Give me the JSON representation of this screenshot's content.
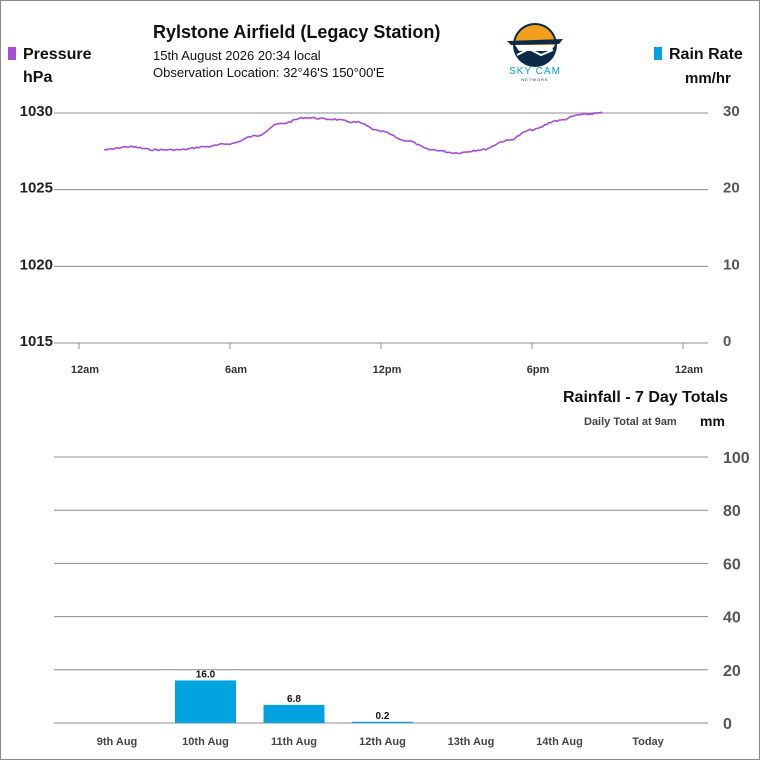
{
  "header": {
    "title": "Rylstone Airfield (Legacy Station)",
    "datetime": "15th August 2026  20:34 local",
    "location": "Observation Location: 32°46'S 150°00'E"
  },
  "logo": {
    "name": "sky-cam-logo",
    "text": "SKY CAM",
    "subtext": "NETWORK"
  },
  "colors": {
    "pressure": "#a64dd8",
    "rain": "#00a2e0",
    "grid": "#8c8c8c"
  },
  "pressure_panel": {
    "left_title": "Pressure",
    "left_unit": "hPa",
    "right_title": "Rain Rate",
    "right_unit": "mm/hr"
  },
  "rain_panel": {
    "title": "Rainfall - 7 Day Totals",
    "subtitle": "Daily Total at 9am",
    "unit": "mm"
  },
  "chart_data": [
    {
      "type": "line",
      "series": [
        {
          "name": "Pressure",
          "x_hours": [
            1.0,
            2.0,
            3.0,
            4.0,
            5.0,
            6.0,
            7.0,
            8.0,
            9.0,
            10.0,
            11.0,
            12.0,
            13.0,
            14.0,
            15.0,
            16.0,
            17.0,
            18.0,
            19.0,
            20.0,
            20.8
          ],
          "values": [
            1027.6,
            1027.8,
            1027.6,
            1027.6,
            1027.8,
            1028.0,
            1028.5,
            1029.3,
            1029.7,
            1029.6,
            1029.4,
            1028.8,
            1028.2,
            1027.6,
            1027.4,
            1027.6,
            1028.2,
            1028.9,
            1029.5,
            1029.9,
            1030.0
          ]
        }
      ],
      "ylim_left": [
        1015,
        1030
      ],
      "yticks_left": [
        "1030",
        "1025",
        "1020",
        "1015"
      ],
      "ylim_right": [
        0,
        30
      ],
      "yticks_right": [
        "30",
        "20",
        "10",
        "0"
      ],
      "xlim_hours": [
        0,
        24
      ],
      "xticks": [
        "12am",
        "6am",
        "12pm",
        "6pm",
        "12am"
      ],
      "grid": true
    },
    {
      "type": "bar",
      "categories": [
        "9th Aug",
        "10th Aug",
        "11th Aug",
        "12th Aug",
        "13th Aug",
        "14th Aug",
        "Today"
      ],
      "values": [
        null,
        16.0,
        6.8,
        0.2,
        null,
        null,
        null
      ],
      "value_labels": [
        "",
        "16.0",
        "6.8",
        "0.2",
        "",
        "",
        ""
      ],
      "ylim": [
        0,
        100
      ],
      "yticks": [
        "100",
        "80",
        "60",
        "40",
        "20",
        "0"
      ],
      "grid": true
    }
  ]
}
